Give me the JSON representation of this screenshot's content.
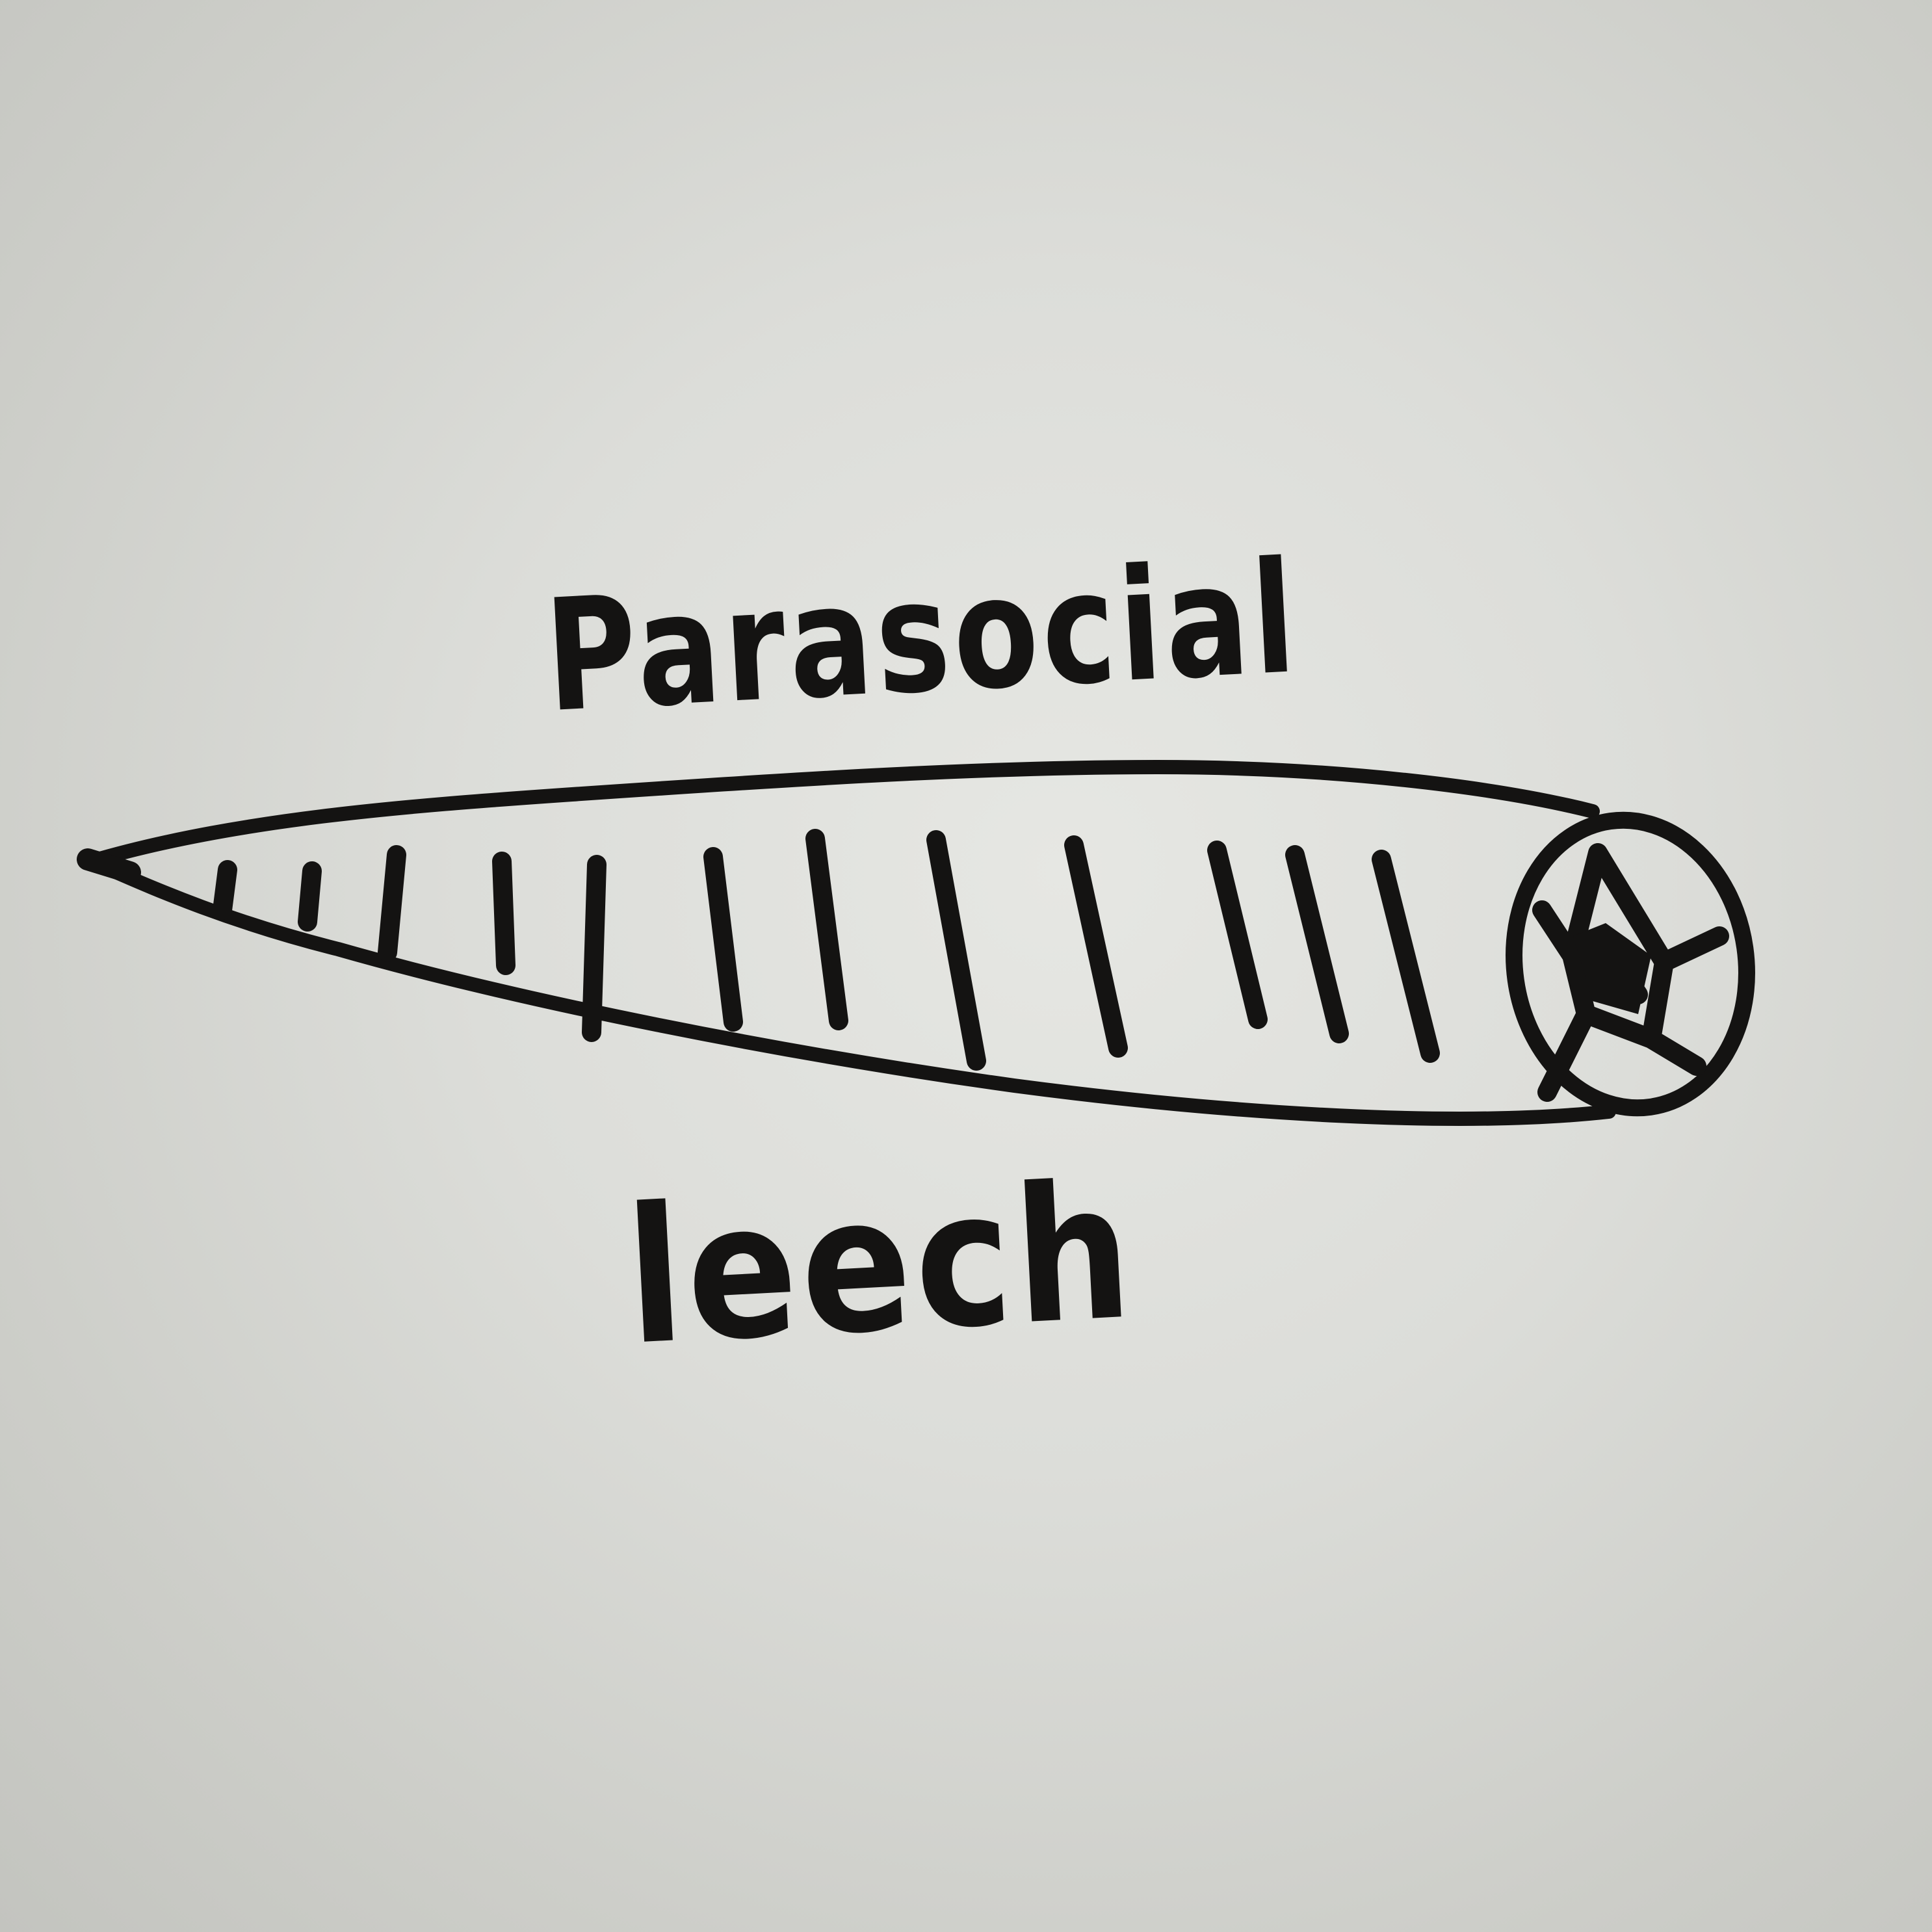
{
  "sketch": {
    "top_label": "Parasocial",
    "bottom_label": "leech",
    "ink_color": "#141312",
    "paper_color": "#dcddd9"
  }
}
